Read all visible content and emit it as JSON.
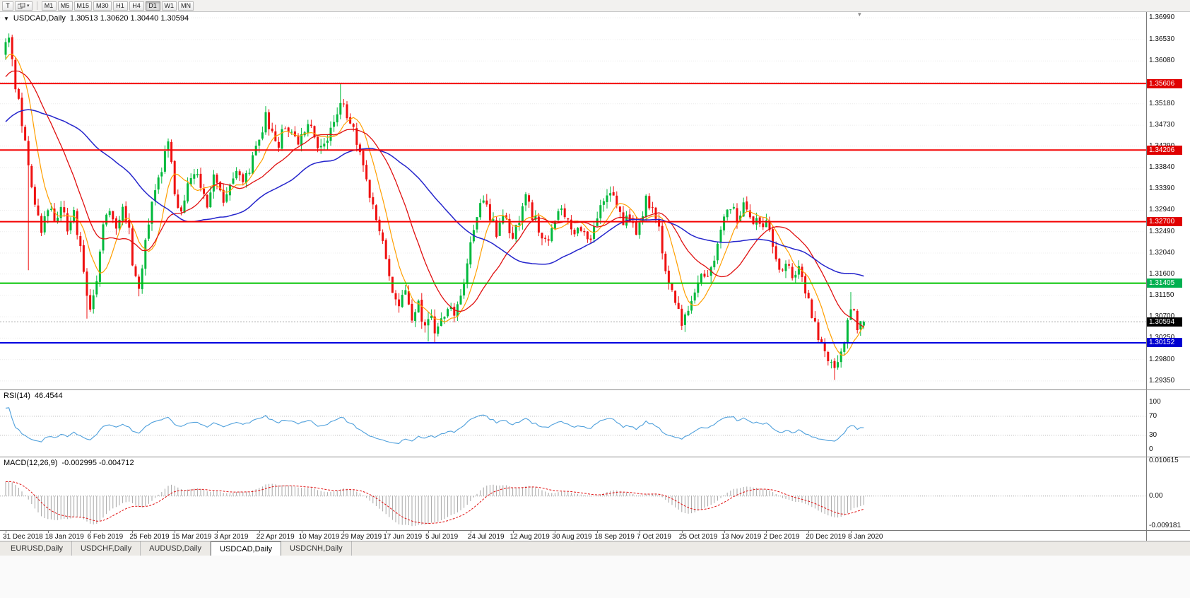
{
  "toolbar": {
    "tool_button": "T",
    "timeframes": [
      "M1",
      "M5",
      "M15",
      "M30",
      "H1",
      "H4",
      "D1",
      "W1",
      "MN"
    ],
    "active_timeframe": "D1"
  },
  "chart": {
    "title": "USDCAD,Daily",
    "ohlc": "1.30513 1.30620 1.30440 1.30594",
    "price_axis": [
      "1.36990",
      "1.36530",
      "1.36080",
      "1.35630",
      "1.35180",
      "1.34730",
      "1.34290",
      "1.33840",
      "1.33390",
      "1.32940",
      "1.32490",
      "1.32040",
      "1.31600",
      "1.31150",
      "1.30700",
      "1.30250",
      "1.29800",
      "1.29350"
    ],
    "levels": [
      {
        "value": "1.35606",
        "price": 1.35606,
        "color": "#f40000"
      },
      {
        "value": "1.34206",
        "price": 1.34206,
        "color": "#f40000"
      },
      {
        "value": "1.32700",
        "price": 1.327,
        "color": "#f40000"
      },
      {
        "value": "1.31405",
        "price": 1.31405,
        "color": "#00c400"
      },
      {
        "value": "1.30152",
        "price": 1.30152,
        "color": "#0000e0"
      }
    ],
    "tags": [
      {
        "text": "1.35606",
        "price": 1.35606,
        "color": "#e00000"
      },
      {
        "text": "1.34206",
        "price": 1.34206,
        "color": "#e00000"
      },
      {
        "text": "1.32700",
        "price": 1.327,
        "color": "#e00000"
      },
      {
        "text": "1.31405",
        "price": 1.31405,
        "color": "#00b050"
      },
      {
        "text": "1.30594",
        "price": 1.30594,
        "color": "#000000"
      },
      {
        "text": "1.30152",
        "price": 1.30152,
        "color": "#0000d0"
      }
    ],
    "current_price": {
      "value": "1.30594",
      "price": 1.30594
    },
    "date_axis": [
      "31 Dec 2018",
      "18 Jan 2019",
      "6 Feb 2019",
      "25 Feb 2019",
      "15 Mar 2019",
      "3 Apr 2019",
      "22 Apr 2019",
      "10 May 2019",
      "29 May 2019",
      "17 Jun 2019",
      "5 Jul 2019",
      "24 Jul 2019",
      "12 Aug 2019",
      "30 Aug 2019",
      "18 Sep 2019",
      "7 Oct 2019",
      "25 Oct 2019",
      "13 Nov 2019",
      "2 Dec 2019",
      "20 Dec 2019",
      "8 Jan 2020"
    ]
  },
  "rsi": {
    "label": "RSI(14)",
    "value": "46.4544",
    "axis": [
      "100",
      "70",
      "30",
      "0"
    ],
    "overbought": 70,
    "oversold": 30
  },
  "macd": {
    "label": "MACD(12,26,9)",
    "values": "-0.002995 -0.004712",
    "axis": [
      "0.010615",
      "0.00",
      "-0.009181"
    ]
  },
  "tabs": [
    {
      "label": "EURUSD,Daily",
      "active": false
    },
    {
      "label": "USDCHF,Daily",
      "active": false
    },
    {
      "label": "AUDUSD,Daily",
      "active": false
    },
    {
      "label": "USDCAD,Daily",
      "active": true
    },
    {
      "label": "USDCNH,Daily",
      "active": false
    }
  ],
  "colors": {
    "candle_up": "#00b93c",
    "candle_down": "#ef1010",
    "rsi_line": "#4fa0dc",
    "macd_hist": "#a6a6a6",
    "macd_signal": "#e01010",
    "grid": "#ececec",
    "current_price_line": "#a8a8a8"
  },
  "chart_data": {
    "type": "candlestick",
    "symbol": "USDCAD",
    "timeframe": "Daily",
    "candle_count": 265,
    "candle_spacing": 4.6,
    "price_top": 1.3711,
    "price_bottom": 1.2917,
    "macd_top": 0.0118,
    "macd_bottom": -0.0104,
    "prehistory_start": 1.325,
    "prehistory_bars": 60,
    "last_candle": {
      "open": 1.30513,
      "high": 1.3062,
      "low": 1.3044,
      "close": 1.30594
    },
    "moving_averages": [
      {
        "period": 8,
        "color": "#ff9f00",
        "width": 1.2
      },
      {
        "period": 21,
        "color": "#e01010",
        "width": 1.3
      },
      {
        "period": 50,
        "color": "#2525cc",
        "width": 1.5
      }
    ],
    "anchors": [
      [
        0,
        1.364
      ],
      [
        1,
        1.3658
      ],
      [
        3,
        1.356
      ],
      [
        5,
        1.3478
      ],
      [
        7,
        1.3385
      ],
      [
        9,
        1.3308
      ],
      [
        11,
        1.3242
      ],
      [
        13,
        1.3298
      ],
      [
        15,
        1.327
      ],
      [
        17,
        1.3312
      ],
      [
        19,
        1.3255
      ],
      [
        21,
        1.3285
      ],
      [
        23,
        1.3215
      ],
      [
        25,
        1.3125
      ],
      [
        26,
        1.3092
      ],
      [
        28,
        1.315
      ],
      [
        30,
        1.3268
      ],
      [
        32,
        1.3302
      ],
      [
        34,
        1.3245
      ],
      [
        36,
        1.3298
      ],
      [
        38,
        1.3262
      ],
      [
        39,
        1.3185
      ],
      [
        41,
        1.3132
      ],
      [
        43,
        1.3228
      ],
      [
        45,
        1.3308
      ],
      [
        47,
        1.3355
      ],
      [
        49,
        1.3415
      ],
      [
        50,
        1.3442
      ],
      [
        52,
        1.3332
      ],
      [
        54,
        1.3292
      ],
      [
        56,
        1.3338
      ],
      [
        58,
        1.3378
      ],
      [
        60,
        1.3342
      ],
      [
        62,
        1.3312
      ],
      [
        64,
        1.3358
      ],
      [
        65,
        1.3342
      ],
      [
        67,
        1.3322
      ],
      [
        69,
        1.3358
      ],
      [
        71,
        1.3388
      ],
      [
        73,
        1.3342
      ],
      [
        75,
        1.3378
      ],
      [
        77,
        1.3418
      ],
      [
        78,
        1.3448
      ],
      [
        80,
        1.3488
      ],
      [
        82,
        1.3458
      ],
      [
        84,
        1.3438
      ],
      [
        86,
        1.3478
      ],
      [
        88,
        1.3458
      ],
      [
        90,
        1.3432
      ],
      [
        91,
        1.345
      ],
      [
        93,
        1.3478
      ],
      [
        95,
        1.3442
      ],
      [
        97,
        1.342
      ],
      [
        99,
        1.3442
      ],
      [
        101,
        1.3488
      ],
      [
        103,
        1.3528
      ],
      [
        104,
        1.3508
      ],
      [
        106,
        1.3478
      ],
      [
        108,
        1.3438
      ],
      [
        110,
        1.3378
      ],
      [
        112,
        1.3328
      ],
      [
        114,
        1.3278
      ],
      [
        116,
        1.3228
      ],
      [
        117,
        1.3182
      ],
      [
        119,
        1.3132
      ],
      [
        121,
        1.3092
      ],
      [
        123,
        1.3118
      ],
      [
        125,
        1.3072
      ],
      [
        127,
        1.3092
      ],
      [
        129,
        1.3052
      ],
      [
        130,
        1.3078
      ],
      [
        132,
        1.3042
      ],
      [
        134,
        1.3062
      ],
      [
        136,
        1.3098
      ],
      [
        138,
        1.3082
      ],
      [
        140,
        1.3118
      ],
      [
        142,
        1.3178
      ],
      [
        143,
        1.3218
      ],
      [
        145,
        1.3278
      ],
      [
        147,
        1.3318
      ],
      [
        149,
        1.3282
      ],
      [
        151,
        1.3242
      ],
      [
        153,
        1.3288
      ],
      [
        155,
        1.3252
      ],
      [
        156,
        1.3232
      ],
      [
        158,
        1.3278
      ],
      [
        160,
        1.3318
      ],
      [
        162,
        1.3282
      ],
      [
        164,
        1.3258
      ],
      [
        166,
        1.3222
      ],
      [
        168,
        1.3258
      ],
      [
        169,
        1.3278
      ],
      [
        171,
        1.3308
      ],
      [
        173,
        1.3272
      ],
      [
        175,
        1.3232
      ],
      [
        177,
        1.3258
      ],
      [
        179,
        1.3222
      ],
      [
        181,
        1.3248
      ],
      [
        182,
        1.3278
      ],
      [
        184,
        1.3318
      ],
      [
        186,
        1.3338
      ],
      [
        188,
        1.3298
      ],
      [
        190,
        1.3262
      ],
      [
        192,
        1.3278
      ],
      [
        194,
        1.3242
      ],
      [
        195,
        1.3268
      ],
      [
        197,
        1.3318
      ],
      [
        199,
        1.3298
      ],
      [
        201,
        1.3248
      ],
      [
        203,
        1.3178
      ],
      [
        205,
        1.3122
      ],
      [
        207,
        1.3082
      ],
      [
        208,
        1.3058
      ],
      [
        210,
        1.3088
      ],
      [
        212,
        1.3128
      ],
      [
        214,
        1.3168
      ],
      [
        216,
        1.3148
      ],
      [
        218,
        1.3198
      ],
      [
        220,
        1.3248
      ],
      [
        221,
        1.3278
      ],
      [
        223,
        1.3298
      ],
      [
        225,
        1.3278
      ],
      [
        227,
        1.3298
      ],
      [
        229,
        1.3268
      ],
      [
        231,
        1.3288
      ],
      [
        233,
        1.3252
      ],
      [
        234,
        1.3278
      ],
      [
        236,
        1.3222
      ],
      [
        238,
        1.3172
      ],
      [
        240,
        1.3188
      ],
      [
        242,
        1.3158
      ],
      [
        244,
        1.3168
      ],
      [
        246,
        1.3128
      ],
      [
        247,
        1.3098
      ],
      [
        249,
        1.3048
      ],
      [
        251,
        1.3008
      ],
      [
        253,
        1.2972
      ],
      [
        255,
        1.2952
      ],
      [
        257,
        1.2988
      ],
      [
        258,
        1.3028
      ],
      [
        260,
        1.3098
      ],
      [
        261,
        1.3072
      ],
      [
        262,
        1.3038
      ],
      [
        263,
        1.3052
      ],
      [
        264,
        1.30594
      ]
    ],
    "wick_overrides": [
      [
        1,
        "high",
        1.3666
      ],
      [
        7,
        "low",
        1.3168
      ],
      [
        25,
        "low",
        1.3066
      ],
      [
        41,
        "low",
        1.3113
      ],
      [
        103,
        "high",
        1.3561
      ],
      [
        130,
        "low",
        1.3018
      ],
      [
        132,
        "low",
        1.3016
      ],
      [
        208,
        "low",
        1.3042
      ],
      [
        255,
        "low",
        1.2937
      ],
      [
        260,
        "high",
        1.3122
      ]
    ],
    "indicators": {
      "rsi": {
        "period": 14,
        "last_value": 46.4544
      },
      "macd": {
        "fast": 12,
        "slow": 26,
        "signal": 9,
        "last_macd": -0.002995,
        "last_signal": -0.004712
      }
    }
  }
}
